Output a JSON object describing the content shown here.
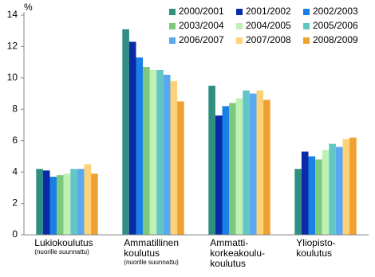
{
  "chart_data": {
    "type": "bar",
    "ylabel": "%",
    "categories": [
      [
        "Lukiokoulutus"
      ],
      [
        "Ammatillinen",
        "koulutus"
      ],
      [
        "Ammatti-",
        "korkeakoulu-",
        "koulutus"
      ],
      [
        "Yliopisto-",
        "koulutus"
      ]
    ],
    "category_notes": [
      "(nuorille suunnattu)",
      "(nuorille suunnattu)",
      null,
      null
    ],
    "series": [
      {
        "name": "2000/2001",
        "color": "#2f8f80",
        "values": [
          4.2,
          13.1,
          9.5,
          4.2
        ]
      },
      {
        "name": "2001/2002",
        "color": "#0a2aa8",
        "values": [
          4.1,
          12.3,
          7.6,
          5.3
        ]
      },
      {
        "name": "2002/2003",
        "color": "#1a80e8",
        "values": [
          3.7,
          11.3,
          8.2,
          5.0
        ]
      },
      {
        "name": "2003/2004",
        "color": "#7cc87c",
        "values": [
          3.8,
          10.7,
          8.4,
          4.8
        ]
      },
      {
        "name": "2004/2005",
        "color": "#bff0b4",
        "values": [
          3.9,
          10.5,
          8.7,
          5.4
        ]
      },
      {
        "name": "2005/2006",
        "color": "#63c6c6",
        "values": [
          4.2,
          10.5,
          9.2,
          5.8
        ]
      },
      {
        "name": "2006/2007",
        "color": "#5aa8f0",
        "values": [
          4.2,
          10.2,
          9.0,
          5.6
        ]
      },
      {
        "name": "2007/2008",
        "color": "#ffd27a",
        "values": [
          4.5,
          9.8,
          9.2,
          6.1
        ]
      },
      {
        "name": "2008/2009",
        "color": "#f0a030",
        "values": [
          3.9,
          8.5,
          8.6,
          6.2
        ]
      }
    ],
    "ylim": [
      0,
      14
    ],
    "yticks": [
      0,
      2,
      4,
      6,
      8,
      10,
      12,
      14
    ],
    "grid": false,
    "legend": "top-right"
  }
}
